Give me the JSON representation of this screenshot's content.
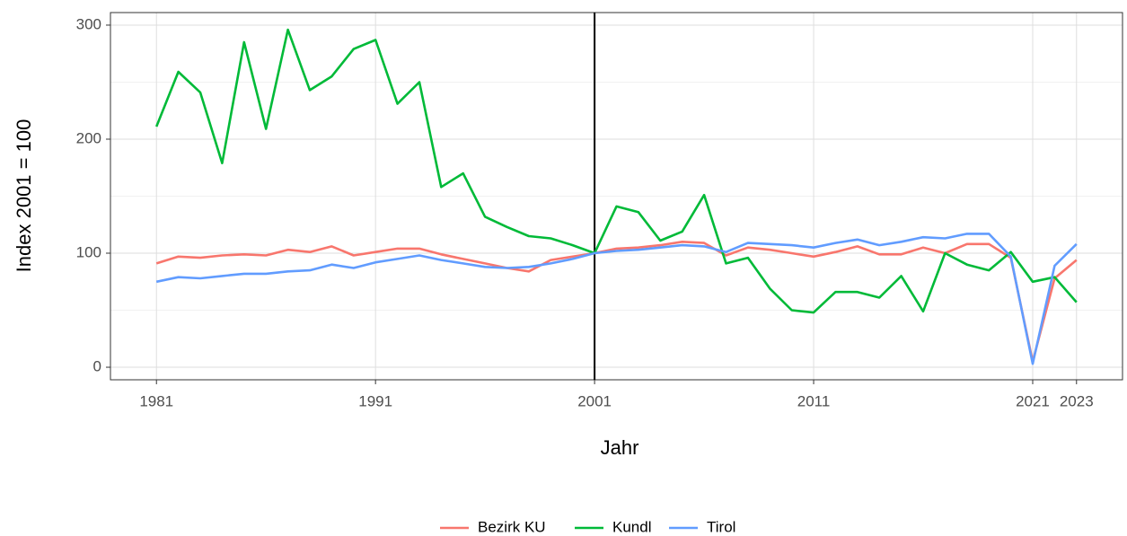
{
  "chart_data": {
    "type": "line",
    "x_label": "Jahr",
    "y_label": "Index 2001 = 100",
    "x": [
      1981,
      1982,
      1983,
      1984,
      1985,
      1986,
      1987,
      1988,
      1989,
      1990,
      1991,
      1992,
      1993,
      1994,
      1995,
      1996,
      1997,
      1998,
      1999,
      2000,
      2001,
      2002,
      2003,
      2004,
      2005,
      2006,
      2007,
      2008,
      2009,
      2010,
      2011,
      2012,
      2013,
      2014,
      2015,
      2016,
      2017,
      2018,
      2019,
      2020,
      2021,
      2022,
      2023
    ],
    "series": [
      {
        "name": "Bezirk KU",
        "color": "#F8766D",
        "values": [
          91,
          97,
          96,
          98,
          99,
          98,
          103,
          101,
          106,
          98,
          101,
          104,
          104,
          99,
          95,
          91,
          87,
          84,
          94,
          97,
          100,
          104,
          105,
          107,
          110,
          109,
          98,
          105,
          103,
          100,
          97,
          101,
          106,
          99,
          99,
          105,
          100,
          108,
          108,
          96,
          5,
          78,
          94
        ]
      },
      {
        "name": "Kundl",
        "color": "#00BA38",
        "values": [
          211,
          259,
          241,
          179,
          285,
          209,
          296,
          243,
          255,
          279,
          287,
          231,
          250,
          158,
          170,
          132,
          123,
          115,
          113,
          107,
          100,
          141,
          136,
          111,
          119,
          151,
          91,
          96,
          69,
          50,
          48,
          66,
          66,
          61,
          80,
          49,
          100,
          90,
          85,
          101,
          75,
          79,
          57
        ]
      },
      {
        "name": "Tirol",
        "color": "#619CFF",
        "values": [
          75,
          79,
          78,
          80,
          82,
          82,
          84,
          85,
          90,
          87,
          92,
          95,
          98,
          94,
          91,
          88,
          87,
          88,
          91,
          95,
          100,
          102,
          103,
          105,
          107,
          106,
          101,
          109,
          108,
          107,
          105,
          109,
          112,
          107,
          110,
          114,
          113,
          117,
          117,
          97,
          3,
          89,
          108
        ]
      }
    ],
    "xlim": [
      1978.9,
      2025.1
    ],
    "xticks": [
      1981,
      1991,
      2001,
      2011,
      2021,
      2023
    ],
    "ylim": [
      -11,
      311
    ],
    "yticks": [
      0,
      100,
      200,
      300
    ],
    "vline": 2001,
    "grid": true,
    "legend": "bottom"
  }
}
